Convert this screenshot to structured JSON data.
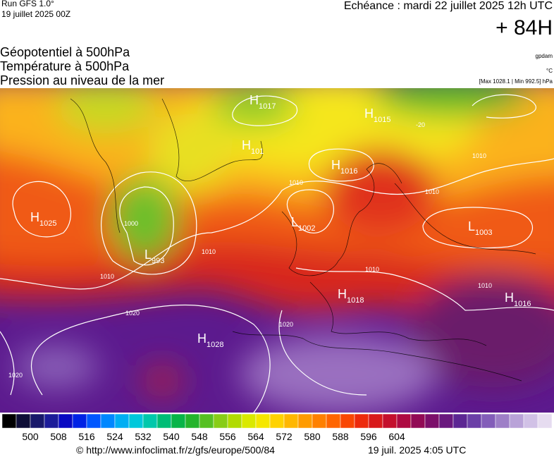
{
  "header": {
    "run": "Run GFS 1.0°",
    "date": "19 juillet 2025 00Z",
    "echeance": "Echéance : mardi 22 juillet 2025 12h UTC",
    "lead": "+ 84H"
  },
  "titles": [
    "Géopotentiel à 500hPa",
    "Température à 500hPa",
    "Pression au niveau de la mer"
  ],
  "units": [
    "gpdam",
    "°C",
    "[Max 1028.1 | Min 992.5] hPa"
  ],
  "pressure_centers": [
    {
      "type": "H",
      "value": 1017
    },
    {
      "type": "H",
      "value": 1015
    },
    {
      "type": "H",
      "value": 101
    },
    {
      "type": "H",
      "value": 1016
    },
    {
      "type": "H",
      "value": 1025
    },
    {
      "type": "L",
      "value": 1002
    },
    {
      "type": "L",
      "value": 1003
    },
    {
      "type": "L",
      "value": 993
    },
    {
      "type": "H",
      "value": 1018
    },
    {
      "type": "H",
      "value": 1016
    },
    {
      "type": "H",
      "value": 1028
    }
  ],
  "isobar_labels": [
    "1010",
    "1010",
    "1010",
    "1010",
    "1000",
    "1010",
    "1020",
    "1020",
    "1020",
    "1010",
    "1010",
    "-20"
  ],
  "colorbar": {
    "ticks": [
      500,
      508,
      516,
      524,
      532,
      540,
      548,
      556,
      564,
      572,
      580,
      588,
      596,
      604
    ]
  },
  "footer": {
    "url": "© http://www.infoclimat.fr/z/gfs/europe/500/84",
    "time": "19 juil. 2025  4:05 UTC"
  }
}
